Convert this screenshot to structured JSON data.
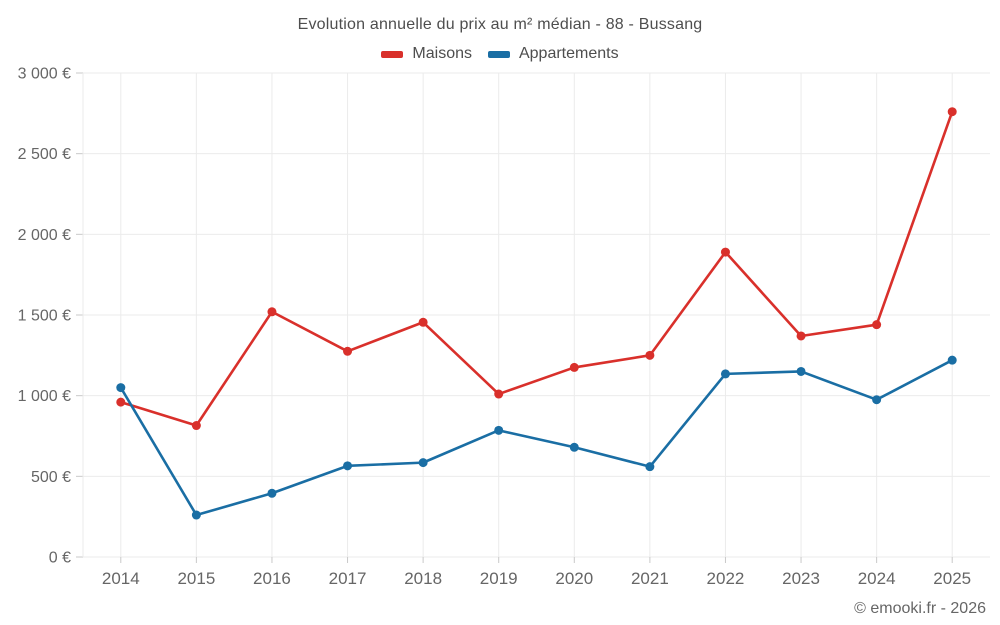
{
  "title": "Evolution annuelle du prix au m² médian - 88 - Bussang",
  "footer": "© emooki.fr - 2026",
  "chart_data": {
    "type": "line",
    "categories": [
      "2014",
      "2015",
      "2016",
      "2017",
      "2018",
      "2019",
      "2020",
      "2021",
      "2022",
      "2023",
      "2024",
      "2025"
    ],
    "series": [
      {
        "name": "Maisons",
        "color": "#d9302b",
        "values": [
          960,
          815,
          1520,
          1275,
          1455,
          1010,
          1175,
          1250,
          1890,
          1370,
          1440,
          2760
        ]
      },
      {
        "name": "Appartements",
        "color": "#1a6ea4",
        "values": [
          1050,
          260,
          395,
          565,
          585,
          785,
          680,
          560,
          1135,
          1150,
          975,
          1220
        ]
      }
    ],
    "title": "Evolution annuelle du prix au m² médian - 88 - Bussang",
    "xlabel": "",
    "ylabel": "",
    "ylim": [
      0,
      3000
    ],
    "y_tick_step": 500,
    "y_tick_labels": [
      "0 €",
      "500 €",
      "1 000 €",
      "1 500 €",
      "2 000 €",
      "2 500 €",
      "3 000 €"
    ],
    "grid": true,
    "legend_position": "top",
    "annotations": [
      "© emooki.fr - 2026"
    ]
  },
  "style": {
    "grid_color": "#ebebeb",
    "tick_color": "#c9c9c9",
    "axis_label_color": "#666666",
    "marker_radius": 4.5,
    "line_width": 2.6
  }
}
